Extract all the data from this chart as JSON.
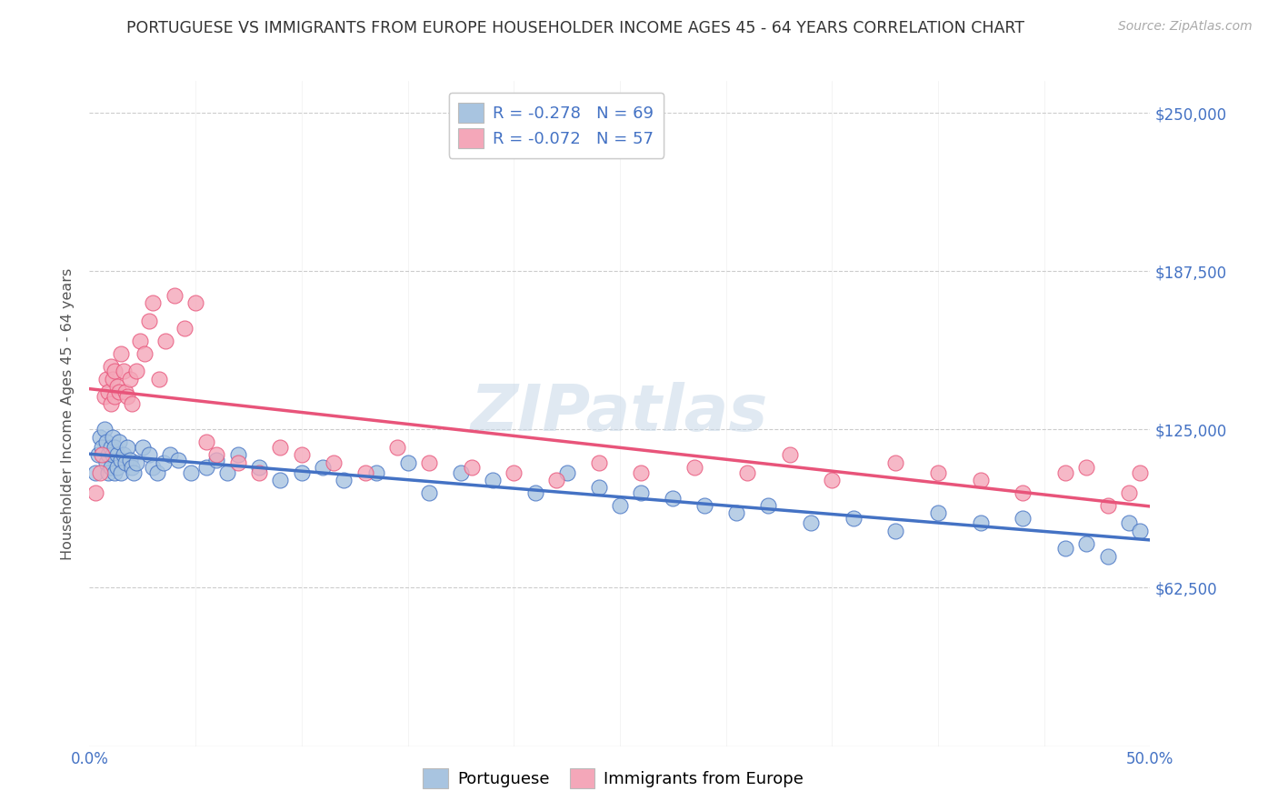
{
  "title": "PORTUGUESE VS IMMIGRANTS FROM EUROPE HOUSEHOLDER INCOME AGES 45 - 64 YEARS CORRELATION CHART",
  "source": "Source: ZipAtlas.com",
  "ylabel": "Householder Income Ages 45 - 64 years",
  "xlim": [
    0.0,
    0.5
  ],
  "ylim": [
    0,
    262500
  ],
  "yticks": [
    0,
    62500,
    125000,
    187500,
    250000
  ],
  "ytick_labels_right": [
    "",
    "$62,500",
    "$125,000",
    "$187,500",
    "$250,000"
  ],
  "xticks": [
    0.0,
    0.05,
    0.1,
    0.15,
    0.2,
    0.25,
    0.3,
    0.35,
    0.4,
    0.45,
    0.5
  ],
  "xtick_labels": [
    "0.0%",
    "",
    "",
    "",
    "",
    "",
    "",
    "",
    "",
    "",
    "50.0%"
  ],
  "legend_labels": [
    "Portuguese",
    "Immigrants from Europe"
  ],
  "R_portuguese": -0.278,
  "N_portuguese": 69,
  "R_immigrants": -0.072,
  "N_immigrants": 57,
  "color_portuguese": "#a8c4e0",
  "color_immigrants": "#f4a7b9",
  "line_color_portuguese": "#4472c4",
  "line_color_immigrants": "#e8547a",
  "title_color": "#333333",
  "axis_label_color": "#555555",
  "tick_color": "#4472c4",
  "grid_color": "#cccccc",
  "watermark": "ZIPatlas",
  "portuguese_x": [
    0.003,
    0.004,
    0.005,
    0.006,
    0.007,
    0.008,
    0.008,
    0.009,
    0.009,
    0.01,
    0.01,
    0.011,
    0.011,
    0.012,
    0.012,
    0.013,
    0.013,
    0.014,
    0.015,
    0.015,
    0.016,
    0.017,
    0.018,
    0.019,
    0.02,
    0.021,
    0.022,
    0.025,
    0.028,
    0.03,
    0.032,
    0.035,
    0.038,
    0.042,
    0.048,
    0.055,
    0.06,
    0.065,
    0.07,
    0.08,
    0.09,
    0.1,
    0.11,
    0.12,
    0.135,
    0.15,
    0.16,
    0.175,
    0.19,
    0.21,
    0.225,
    0.24,
    0.25,
    0.26,
    0.275,
    0.29,
    0.305,
    0.32,
    0.34,
    0.36,
    0.38,
    0.4,
    0.42,
    0.44,
    0.46,
    0.47,
    0.48,
    0.49,
    0.495
  ],
  "portuguese_y": [
    108000,
    115000,
    122000,
    118000,
    125000,
    120000,
    112000,
    115000,
    108000,
    118000,
    110000,
    122000,
    115000,
    118000,
    108000,
    115000,
    110000,
    120000,
    113000,
    108000,
    115000,
    112000,
    118000,
    113000,
    110000,
    108000,
    112000,
    118000,
    115000,
    110000,
    108000,
    112000,
    115000,
    113000,
    108000,
    110000,
    113000,
    108000,
    115000,
    110000,
    105000,
    108000,
    110000,
    105000,
    108000,
    112000,
    100000,
    108000,
    105000,
    100000,
    108000,
    102000,
    95000,
    100000,
    98000,
    95000,
    92000,
    95000,
    88000,
    90000,
    85000,
    92000,
    88000,
    90000,
    78000,
    80000,
    75000,
    88000,
    85000
  ],
  "immigrants_x": [
    0.003,
    0.005,
    0.006,
    0.007,
    0.008,
    0.009,
    0.01,
    0.01,
    0.011,
    0.012,
    0.012,
    0.013,
    0.014,
    0.015,
    0.016,
    0.017,
    0.018,
    0.019,
    0.02,
    0.022,
    0.024,
    0.026,
    0.028,
    0.03,
    0.033,
    0.036,
    0.04,
    0.045,
    0.05,
    0.055,
    0.06,
    0.07,
    0.08,
    0.09,
    0.1,
    0.115,
    0.13,
    0.145,
    0.16,
    0.18,
    0.2,
    0.22,
    0.24,
    0.26,
    0.285,
    0.31,
    0.33,
    0.35,
    0.38,
    0.4,
    0.42,
    0.44,
    0.46,
    0.47,
    0.48,
    0.49,
    0.495
  ],
  "immigrants_y": [
    100000,
    108000,
    115000,
    138000,
    145000,
    140000,
    150000,
    135000,
    145000,
    148000,
    138000,
    142000,
    140000,
    155000,
    148000,
    140000,
    138000,
    145000,
    135000,
    148000,
    160000,
    155000,
    168000,
    175000,
    145000,
    160000,
    178000,
    165000,
    175000,
    120000,
    115000,
    112000,
    108000,
    118000,
    115000,
    112000,
    108000,
    118000,
    112000,
    110000,
    108000,
    105000,
    112000,
    108000,
    110000,
    108000,
    115000,
    105000,
    112000,
    108000,
    105000,
    100000,
    108000,
    110000,
    95000,
    100000,
    108000
  ]
}
